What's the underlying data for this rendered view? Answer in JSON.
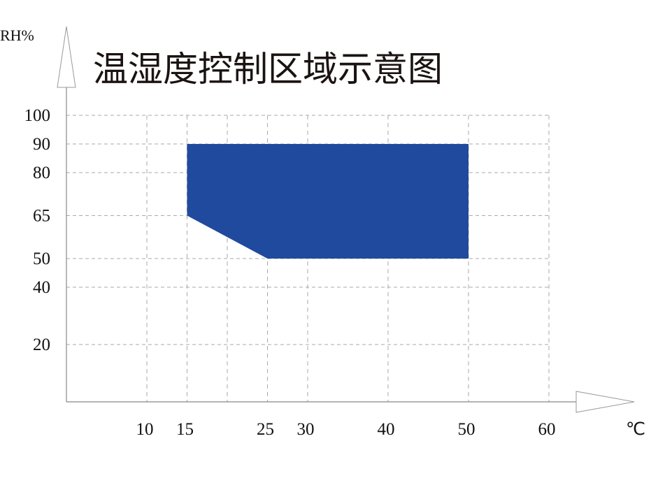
{
  "chart_data": {
    "type": "area",
    "title": "温湿度控制区域示意图",
    "xlabel": "℃",
    "ylabel": "RH%",
    "xlim": [
      0,
      70
    ],
    "ylim": [
      0,
      105
    ],
    "x_ticks": [
      10,
      15,
      25,
      30,
      40,
      50,
      60
    ],
    "x_gridlines": [
      10,
      15,
      20,
      25,
      30,
      40,
      50,
      60
    ],
    "y_ticks": [
      20,
      40,
      50,
      65,
      80,
      90,
      100
    ],
    "grid": true,
    "grid_style": "dashed",
    "region": {
      "points": [
        [
          15,
          90
        ],
        [
          50,
          90
        ],
        [
          50,
          50
        ],
        [
          25,
          50
        ],
        [
          15,
          65
        ]
      ],
      "color": "#204a9e"
    }
  }
}
